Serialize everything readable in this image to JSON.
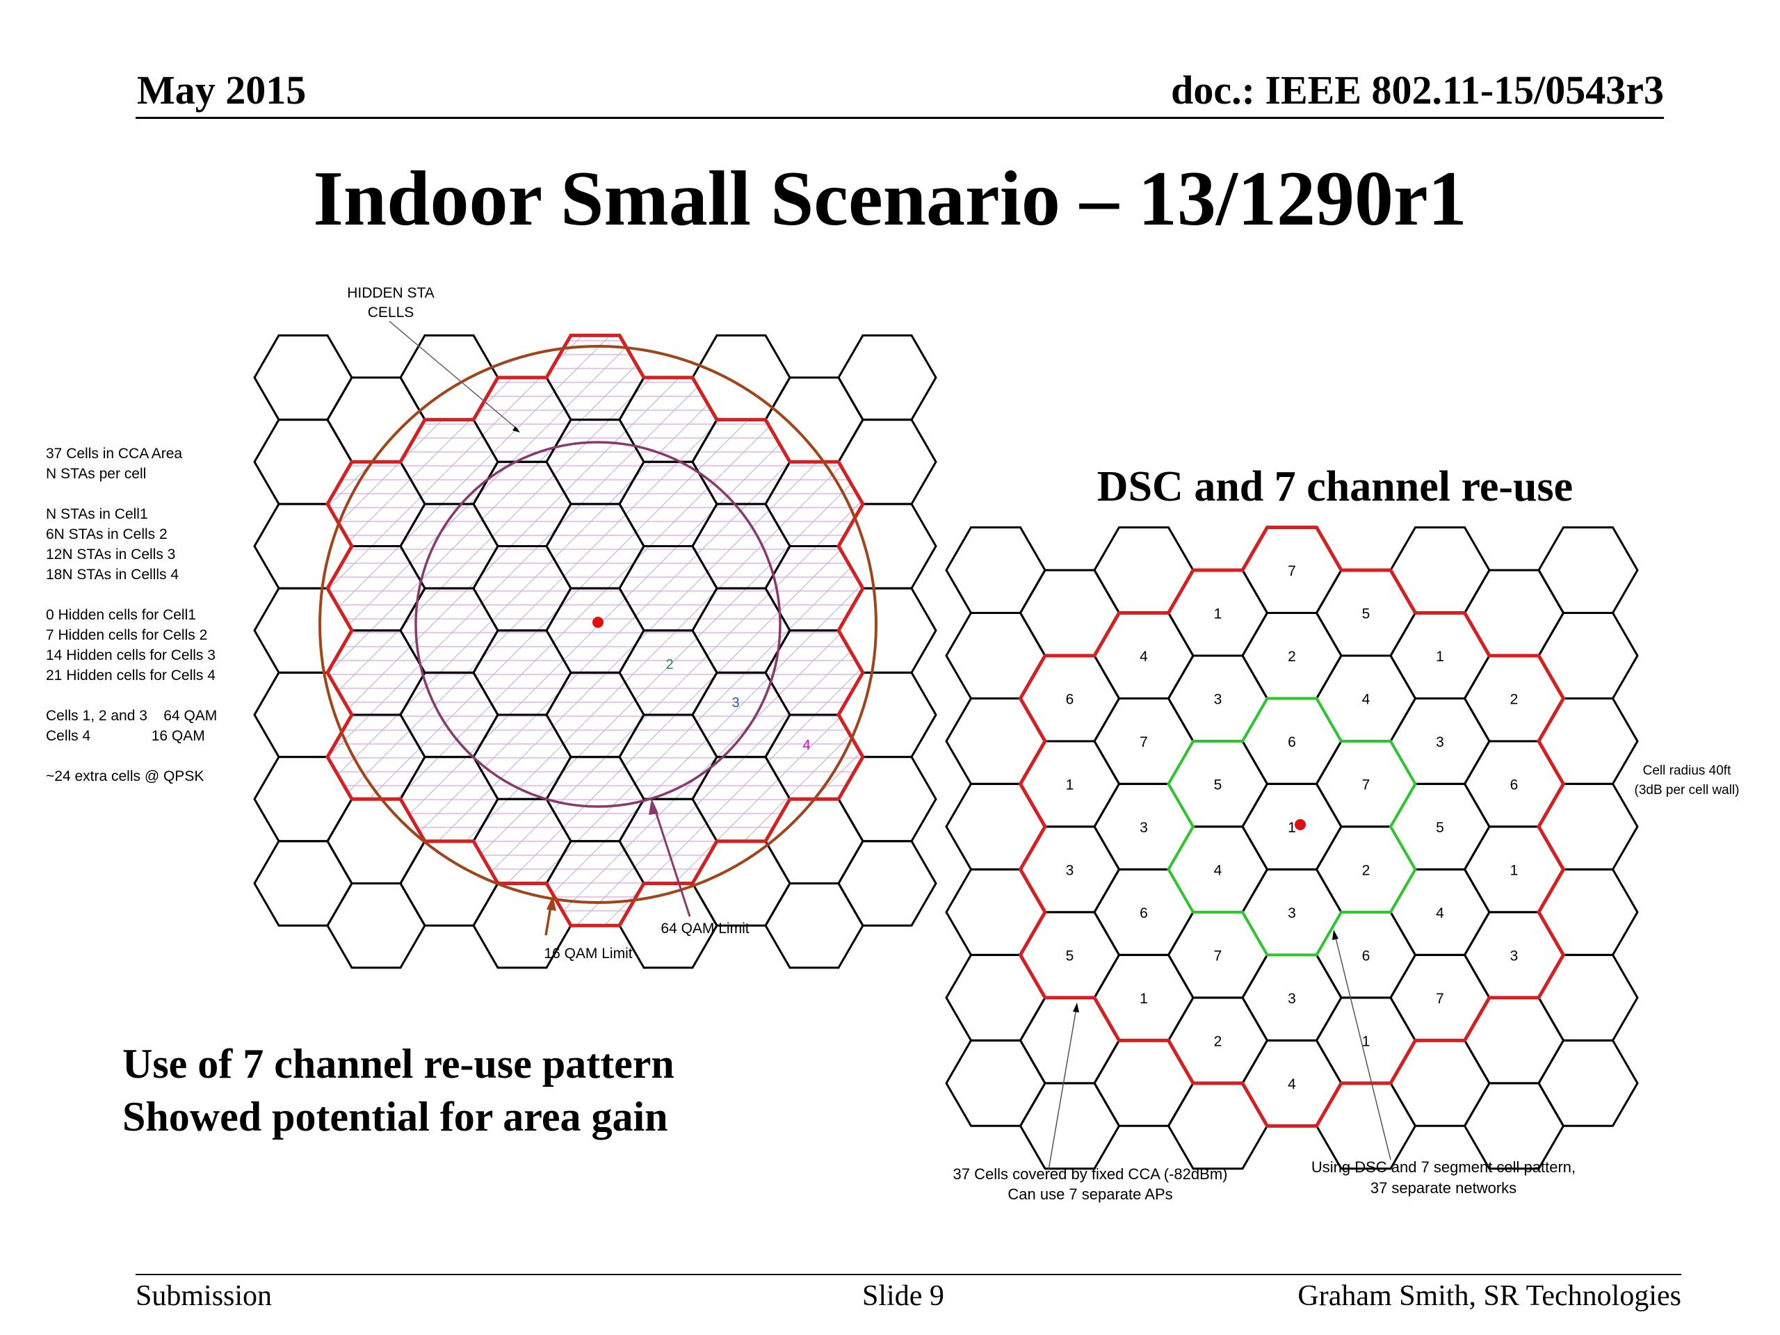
{
  "header": {
    "date": "May 2015",
    "doc_id": "doc.: IEEE 802.11-15/0543r3"
  },
  "title": "Indoor Small Scenario – 13/1290r1",
  "left_diagram": {
    "notes": [
      "37 Cells in CCA Area",
      "N STAs per cell",
      "",
      "N STAs in Cell1",
      "6N STAs in Cells 2",
      "12N STAs in Cells 3",
      "18N STAs in Cellls 4",
      "",
      "0 Hidden cells for Cell1",
      "7 Hidden cells for Cells 2",
      "14 Hidden cells for Cells 3",
      "21 Hidden cells for Cells 4",
      "",
      "Cells 1, 2 and 3    64 QAM",
      "Cells 4               16 QAM",
      "",
      "~24 extra cells @ QPSK"
    ],
    "hidden_label_line1": "HIDDEN STA",
    "hidden_label_line2": "CELLS",
    "cell_labels": [
      {
        "text": "2",
        "color": "#1e8f4a"
      },
      {
        "text": "3",
        "color": "#2255cc"
      },
      {
        "text": "4",
        "color": "#d400d4"
      }
    ],
    "limit_64qam": "64 QAM Limit",
    "limit_16qam": "16 QAM Limit",
    "colors": {
      "cca_boundary": "#d42020",
      "qam16_circle": "#a0441a",
      "qam64_circle": "#8a3a6a",
      "hatch": "#d9a0e0"
    }
  },
  "right_diagram": {
    "title": "DSC and 7 channel re-use",
    "cell_numbers": [
      {
        "col": 0,
        "row": 1,
        "n": "6"
      },
      {
        "col": 0,
        "row": 2,
        "n": "1"
      },
      {
        "col": 0,
        "row": 3,
        "n": "3"
      },
      {
        "col": 0,
        "row": 4,
        "n": "5"
      },
      {
        "col": 1,
        "row": 1,
        "n": "4"
      },
      {
        "col": 1,
        "row": 2,
        "n": "7"
      },
      {
        "col": 1,
        "row": 3,
        "n": "3"
      },
      {
        "col": 1,
        "row": 4,
        "n": "6"
      },
      {
        "col": 1,
        "row": 5,
        "n": "1"
      },
      {
        "col": 2,
        "row": 0,
        "n": "1"
      },
      {
        "col": 2,
        "row": 1,
        "n": "3"
      },
      {
        "col": 2,
        "row": 2,
        "n": "5"
      },
      {
        "col": 2,
        "row": 3,
        "n": "4"
      },
      {
        "col": 2,
        "row": 4,
        "n": "7"
      },
      {
        "col": 2,
        "row": 5,
        "n": "2"
      },
      {
        "col": 3,
        "row": 0,
        "n": "7"
      },
      {
        "col": 3,
        "row": 1,
        "n": "2"
      },
      {
        "col": 3,
        "row": 2,
        "n": "6"
      },
      {
        "col": 3,
        "row": 3,
        "n": "1"
      },
      {
        "col": 3,
        "row": 4,
        "n": "3"
      },
      {
        "col": 3,
        "row": 5,
        "n": "3"
      },
      {
        "col": 3,
        "row": 6,
        "n": "4"
      },
      {
        "col": 4,
        "row": 0,
        "n": "5"
      },
      {
        "col": 4,
        "row": 1,
        "n": "4"
      },
      {
        "col": 4,
        "row": 2,
        "n": "7"
      },
      {
        "col": 4,
        "row": 3,
        "n": "2"
      },
      {
        "col": 4,
        "row": 4,
        "n": "6"
      },
      {
        "col": 4,
        "row": 5,
        "n": "1"
      },
      {
        "col": 5,
        "row": 1,
        "n": "1"
      },
      {
        "col": 5,
        "row": 2,
        "n": "3"
      },
      {
        "col": 5,
        "row": 3,
        "n": "5"
      },
      {
        "col": 5,
        "row": 4,
        "n": "4"
      },
      {
        "col": 5,
        "row": 5,
        "n": "7"
      },
      {
        "col": 6,
        "row": 1,
        "n": "2"
      },
      {
        "col": 6,
        "row": 2,
        "n": "6"
      },
      {
        "col": 6,
        "row": 3,
        "n": "1"
      },
      {
        "col": 6,
        "row": 4,
        "n": "3"
      }
    ],
    "radius_label_line1": "Cell radius 40ft",
    "radius_label_line2": "(3dB per cell wall)",
    "cca_caption_line1": "37 Cells covered by fixed CCA (-82dBm)",
    "cca_caption_line2": "Can use 7 separate APs",
    "dsc_caption_line1": "Using DSC and 7 segment cell pattern,",
    "dsc_caption_line2": "37 separate networks",
    "colors": {
      "cca_boundary": "#d42020",
      "center_cluster": "#2ec42e",
      "center_dot": "#e01010"
    }
  },
  "conclusion": {
    "line1": "Use of 7 channel re-use pattern",
    "line2": "Showed potential for area gain"
  },
  "footer": {
    "left": "Submission",
    "center": "Slide 9",
    "right": "Graham Smith, SR Technologies"
  }
}
